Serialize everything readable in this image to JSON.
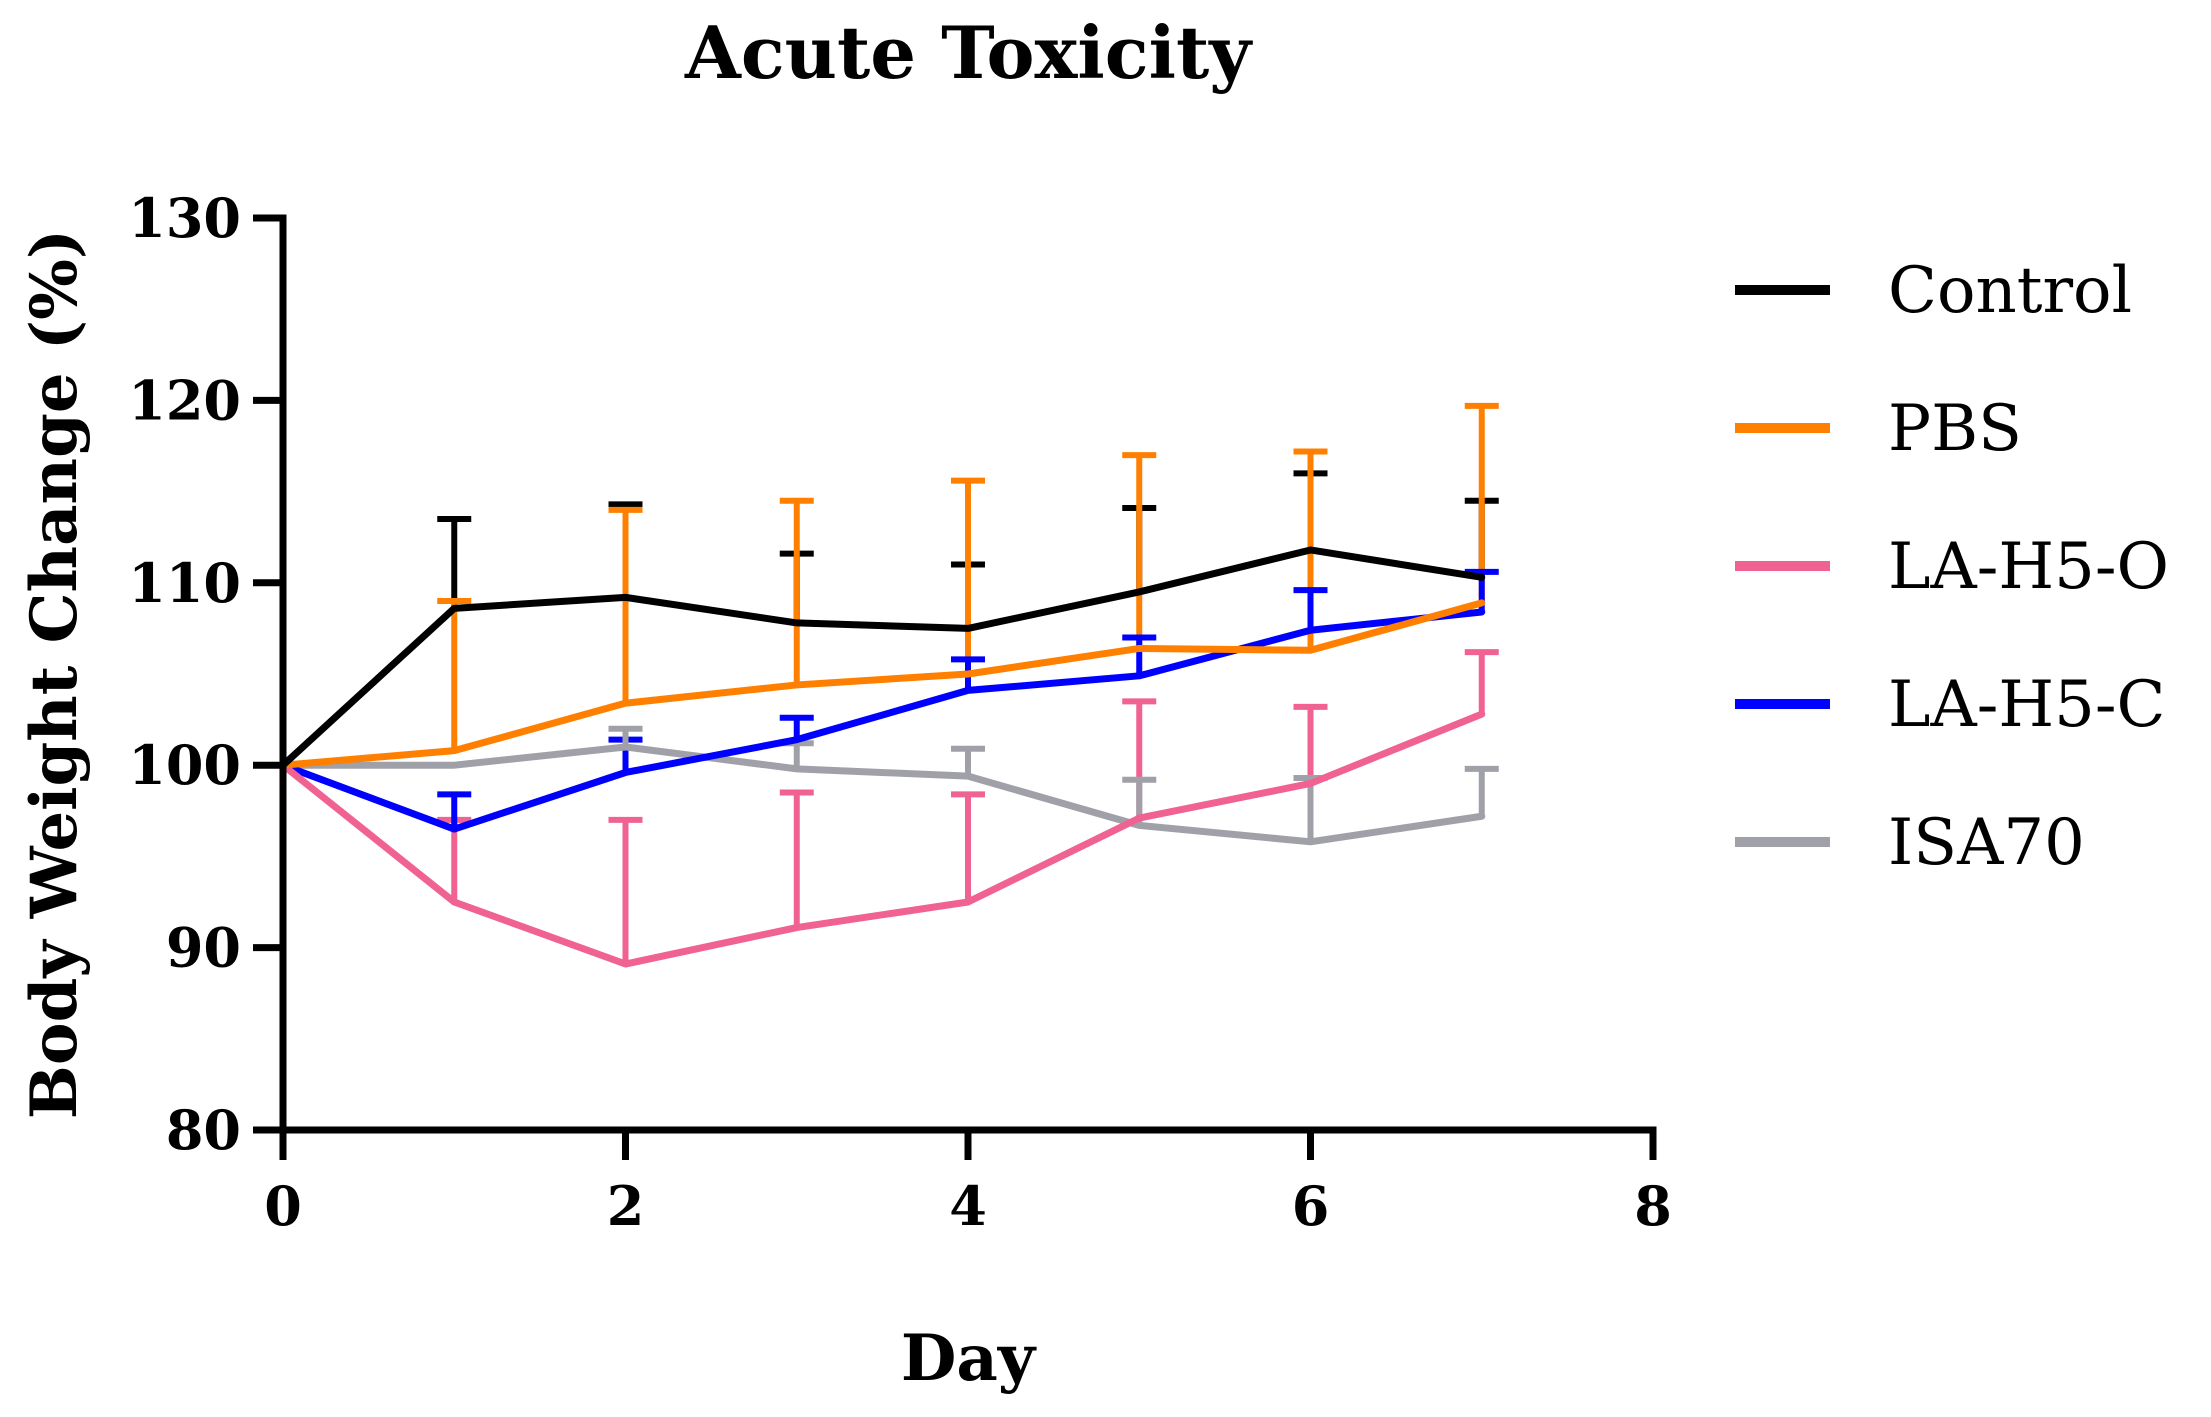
{
  "chart_data": {
    "type": "line",
    "title": "Acute Toxicity",
    "xlabel": "Day",
    "ylabel": "Body Weight Change (%)",
    "xlim": [
      0,
      8
    ],
    "ylim": [
      80,
      130
    ],
    "xticks": [
      "0",
      "2",
      "4",
      "6",
      "8"
    ],
    "yticks": [
      "80",
      "90",
      "100",
      "110",
      "120",
      "130"
    ],
    "legend_position": "right",
    "series": [
      {
        "name": "Control",
        "color": "#000000",
        "x": [
          0,
          1,
          2,
          3,
          4,
          5,
          6,
          7
        ],
        "values": [
          100,
          108.6,
          109.2,
          107.8,
          107.5,
          109.5,
          111.8,
          110.3
        ],
        "error_upper": [
          100,
          113.5,
          114.3,
          111.6,
          111.0,
          114.1,
          116.0,
          114.5
        ]
      },
      {
        "name": "PBS",
        "color": "#ff8000",
        "x": [
          0,
          1,
          2,
          3,
          4,
          5,
          6,
          7
        ],
        "values": [
          100,
          100.8,
          103.4,
          104.4,
          105.0,
          106.4,
          106.3,
          108.9
        ],
        "error_upper": [
          100,
          109.0,
          114.0,
          114.5,
          115.6,
          117.0,
          117.2,
          119.7
        ]
      },
      {
        "name": "LA-H5-O",
        "color": "#f06292",
        "x": [
          0,
          1,
          2,
          3,
          4,
          5,
          6,
          7
        ],
        "values": [
          100,
          92.5,
          89.1,
          91.1,
          92.5,
          97.1,
          99.0,
          102.8
        ],
        "error_upper": [
          100,
          97.0,
          97.0,
          98.5,
          98.4,
          103.5,
          103.2,
          106.2
        ]
      },
      {
        "name": "LA-H5-C",
        "color": "#0000ff",
        "x": [
          0,
          1,
          2,
          3,
          4,
          5,
          6,
          7
        ],
        "values": [
          100,
          96.5,
          99.6,
          101.4,
          104.1,
          104.9,
          107.4,
          108.4
        ],
        "error_upper": [
          100,
          98.4,
          101.4,
          102.6,
          105.8,
          107.0,
          109.6,
          110.6
        ]
      },
      {
        "name": "ISA70",
        "color": "#a0a0a8",
        "x": [
          0,
          1,
          2,
          3,
          4,
          5,
          6,
          7
        ],
        "values": [
          100,
          100.0,
          101.0,
          99.8,
          99.4,
          96.7,
          95.8,
          97.2
        ],
        "error_upper": [
          100,
          100.0,
          102.0,
          101.2,
          100.9,
          99.2,
          99.3,
          99.8
        ]
      }
    ]
  }
}
